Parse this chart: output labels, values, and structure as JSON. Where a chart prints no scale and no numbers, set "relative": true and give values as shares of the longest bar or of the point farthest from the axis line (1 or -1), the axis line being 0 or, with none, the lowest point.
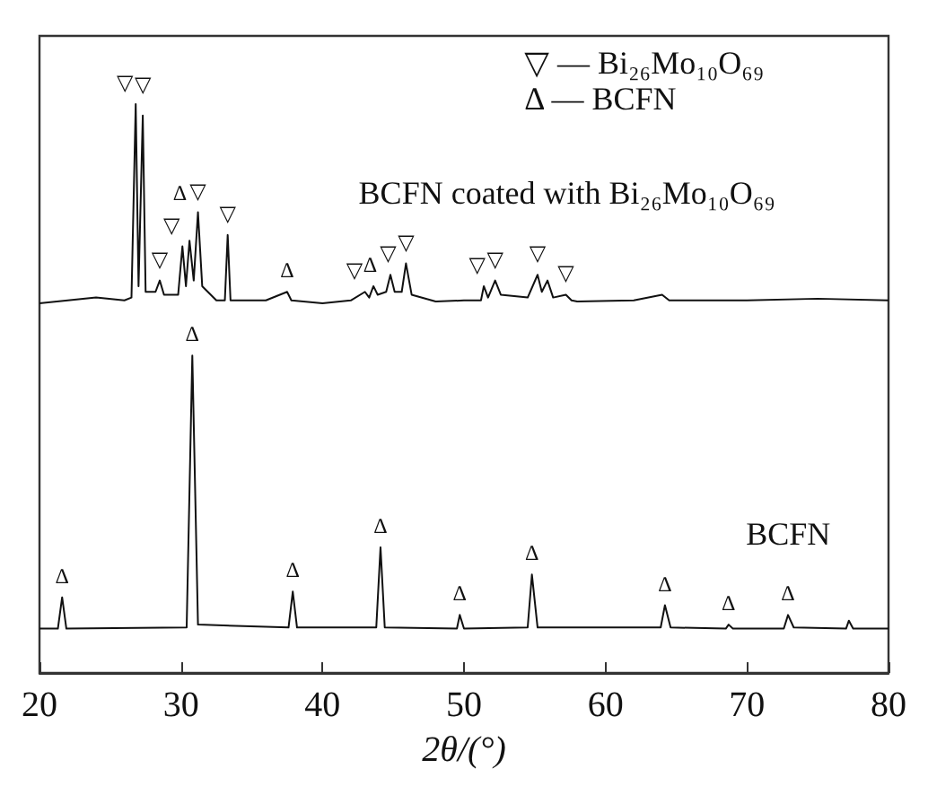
{
  "chart_data": {
    "type": "line",
    "relative": true,
    "xlabel": "2θ/(°)",
    "xlim": [
      20,
      80
    ],
    "xticks": [
      20,
      30,
      40,
      50,
      60,
      70,
      80
    ],
    "marker": "none",
    "line_style": "solid",
    "grid": false,
    "series": [
      {
        "name": "BCFN coated with Bi₂₆Mo₁₀O₆₉",
        "color": "#111111",
        "x": [
          20,
          22,
          24,
          26,
          26.5,
          26.8,
          27.0,
          27.3,
          27.5,
          28.2,
          28.5,
          28.8,
          29.8,
          30.1,
          30.35,
          30.6,
          30.9,
          31.2,
          31.5,
          32.5,
          33.1,
          33.3,
          33.5,
          36,
          37.5,
          37.8,
          40,
          42,
          43.0,
          43.3,
          43.6,
          43.9,
          44.5,
          44.8,
          45.1,
          45.6,
          45.9,
          46.3,
          48,
          50,
          51.2,
          51.4,
          51.7,
          52.2,
          52.6,
          54.5,
          55.2,
          55.5,
          55.9,
          56.3,
          57.2,
          57.6,
          58,
          62,
          64,
          64.5,
          70,
          75,
          80
        ],
        "values": [
          0.65,
          0.655,
          0.66,
          0.655,
          0.66,
          1.0,
          0.68,
          0.98,
          0.67,
          0.67,
          0.69,
          0.665,
          0.665,
          0.75,
          0.68,
          0.76,
          0.69,
          0.81,
          0.68,
          0.655,
          0.655,
          0.77,
          0.655,
          0.655,
          0.67,
          0.655,
          0.65,
          0.655,
          0.67,
          0.66,
          0.68,
          0.665,
          0.67,
          0.7,
          0.67,
          0.67,
          0.72,
          0.665,
          0.653,
          0.655,
          0.655,
          0.68,
          0.66,
          0.69,
          0.665,
          0.66,
          0.7,
          0.67,
          0.69,
          0.66,
          0.665,
          0.655,
          0.653,
          0.655,
          0.665,
          0.655,
          0.655,
          0.658,
          0.655
        ]
      },
      {
        "name": "BCFN",
        "color": "#111111",
        "x": [
          20,
          21.3,
          21.6,
          21.9,
          30.4,
          30.8,
          31.2,
          37.6,
          37.9,
          38.2,
          43.8,
          44.1,
          44.4,
          49.5,
          49.7,
          50.0,
          54.5,
          54.8,
          55.2,
          63.9,
          64.2,
          64.6,
          68.5,
          68.7,
          69,
          72.6,
          72.9,
          73.3,
          77,
          77.2,
          77.5,
          80
        ],
        "values": [
          0.078,
          0.078,
          0.133,
          0.078,
          0.08,
          0.558,
          0.085,
          0.08,
          0.143,
          0.08,
          0.08,
          0.221,
          0.08,
          0.078,
          0.102,
          0.078,
          0.08,
          0.173,
          0.08,
          0.08,
          0.119,
          0.08,
          0.078,
          0.085,
          0.078,
          0.078,
          0.102,
          0.08,
          0.078,
          0.092,
          0.078,
          0.078
        ]
      }
    ],
    "annotations": [
      "▽ — Bi₂₆Mo₁₀O₆₉",
      "Δ — BCFN",
      {
        "text": "▽",
        "x": 26.8,
        "y": 1.0
      },
      {
        "text": "▽",
        "x": 27.3,
        "y": 0.98
      },
      {
        "text": "▽",
        "x": 28.5,
        "y": 0.69
      },
      {
        "text": "▽",
        "x": 30.1,
        "y": 0.75
      },
      {
        "text": "Δ",
        "x": 30.6,
        "y": 0.76
      },
      {
        "text": "▽",
        "x": 31.2,
        "y": 0.81
      },
      {
        "text": "▽",
        "x": 33.3,
        "y": 0.77
      },
      {
        "text": "Δ",
        "x": 37.5,
        "y": 0.67
      },
      {
        "text": "▽",
        "x": 43.0,
        "y": 0.67
      },
      {
        "text": "Δ",
        "x": 43.6,
        "y": 0.68
      },
      {
        "text": "▽",
        "x": 44.8,
        "y": 0.7
      },
      {
        "text": "▽",
        "x": 45.9,
        "y": 0.72
      },
      {
        "text": "▽",
        "x": 51.4,
        "y": 0.68
      },
      {
        "text": "▽",
        "x": 52.2,
        "y": 0.69
      },
      {
        "text": "▽",
        "x": 55.2,
        "y": 0.7
      },
      {
        "text": "▽",
        "x": 57.2,
        "y": 0.665
      },
      {
        "text": "Δ",
        "x": 30.8,
        "y": 0.558
      },
      {
        "text": "Δ",
        "x": 21.6,
        "y": 0.133
      },
      {
        "text": "Δ",
        "x": 37.9,
        "y": 0.143
      },
      {
        "text": "Δ",
        "x": 44.1,
        "y": 0.221
      },
      {
        "text": "Δ",
        "x": 49.7,
        "y": 0.102
      },
      {
        "text": "Δ",
        "x": 54.8,
        "y": 0.173
      },
      {
        "text": "Δ",
        "x": 64.2,
        "y": 0.119
      },
      {
        "text": "Δ",
        "x": 68.7,
        "y": 0.085
      },
      {
        "text": "Δ",
        "x": 72.9,
        "y": 0.102
      }
    ]
  }
}
